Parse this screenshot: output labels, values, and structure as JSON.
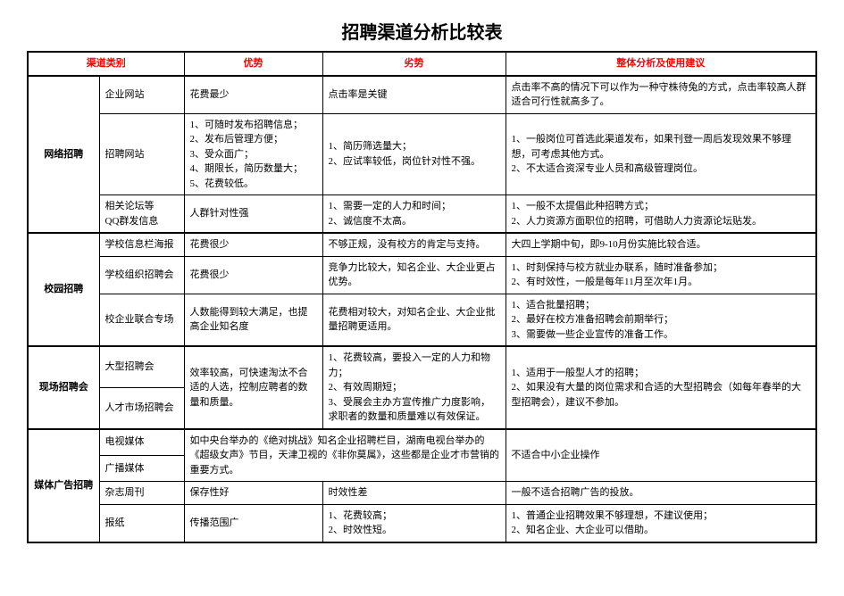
{
  "title": "招聘渠道分析比较表",
  "headers": {
    "category": "渠道类别",
    "advantage": "优势",
    "disadvantage": "劣势",
    "suggestion": "整体分析及使用建议"
  },
  "c1": {
    "name": "网络招聘",
    "r1": {
      "ch": "企业网站",
      "adv": "花费最少",
      "dis": "点击率是关键",
      "sug": "点击率不高的情况下可以作为一种守株待兔的方式，点击率较高人群适合可行性就高多了。"
    },
    "r2": {
      "ch": "招聘网站",
      "adv": "1、可随时发布招聘信息；\n2、发布后管理方便；\n3、受众面广；\n4、期限长，简历数量大；\n5、花费较低。",
      "dis": "1、简历筛选量大；\n2、应试率较低，岗位针对性不强。",
      "sug": "1、一般岗位可首选此渠道发布，如果刊登一周后发现效果不够理想，可考虑其他方式。\n2、不太适合资深专业人员和高级管理岗位。"
    },
    "r3": {
      "ch": "相关论坛等\nQQ群发信息",
      "adv": "人群针对性强",
      "dis": "1、需要一定的人力和时间；\n2、诚信度不太高。",
      "sug": "1、一般不太提倡此种招聘方式；\n2、人力资源方面职位的招聘，可借助人力资源论坛贴发。"
    }
  },
  "c2": {
    "name": "校园招聘",
    "r1": {
      "ch": "学校信息栏海报",
      "adv": "花费很少",
      "dis": "不够正规，没有校方的肯定与支持。",
      "sug": "大四上学期中旬，即9-10月份实施比较合适。"
    },
    "r2": {
      "ch": "学校组织招聘会",
      "adv": "花费很少",
      "dis": "竞争力比较大，知名企业、大企业更占优势。",
      "sug": "1、时刻保持与校方就业办联系，随时准备参加；\n2、有时效性，一般是每年11月至次年1月。"
    },
    "r3": {
      "ch": "校企业联合专场",
      "adv": "人数能得到较大满足，也提高企业知名度",
      "dis": "花费相对较大，对知名企业、大企业批量招聘更适用。",
      "sug": "1、适合批量招聘；\n2、最好在校方准备招聘会前期举行；\n3、需要做一些企业宣传的准备工作。"
    }
  },
  "c3": {
    "name": "现场招聘会",
    "r1": {
      "ch": "大型招聘会"
    },
    "r2": {
      "ch": "人才市场招聘会"
    },
    "adv": "效率较高，可快速淘汰不合适的人选，控制应聘者的数量和质量。",
    "dis": "1、花费较高，要投入一定的人力和物力；\n2、有效周期短；\n3、受展会主办方宣传推广力度影响，求职者的数量和质量难以有效保证。",
    "sug": "1、适用于一般型人才的招聘；\n2、如果没有大量的岗位需求和合适的大型招聘会（如每年春举的大型招聘会），建议不参加。"
  },
  "c4": {
    "name": "媒体广告招聘",
    "r1": {
      "ch": "电视媒体"
    },
    "r2": {
      "ch": "广播媒体"
    },
    "m_adv": "如中央台举办的《绝对挑战》知名企业招聘栏目，湖南电视台举办的《超级女声》节目，天津卫视的《非你莫属》，这些都是企业才市营销的重要方式。",
    "m_sug": "不适合中小企业操作",
    "r3": {
      "ch": "杂志周刊",
      "adv": "保存性好",
      "dis": "时效性差",
      "sug": "一般不适合招聘广告的投放。"
    },
    "r4": {
      "ch": "报纸",
      "adv": "传播范围广",
      "dis": "1、花费较高；\n2、时效性短。",
      "sug": "1、普通企业招聘效果不够理想，不建议使用；\n2、知名企业、大企业可以借助。"
    }
  }
}
